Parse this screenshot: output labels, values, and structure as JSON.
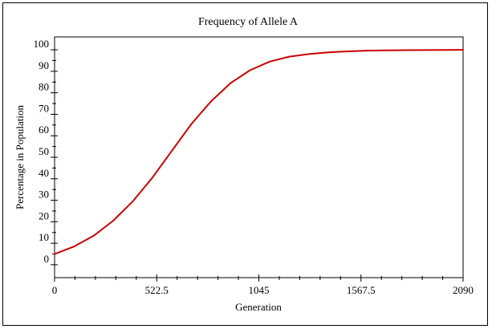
{
  "chart_data": {
    "type": "line",
    "title": "Frequency of Allele A",
    "xlabel": "Generation",
    "ylabel": "Percentage in Population",
    "xlim": [
      0,
      2090
    ],
    "ylim": [
      -6,
      106
    ],
    "x_ticks": [
      0,
      522.5,
      1045,
      1567.5,
      2090
    ],
    "x_tick_labels": [
      "0",
      "522.5",
      "1045",
      "1567.5",
      "2090"
    ],
    "y_ticks": [
      0,
      10,
      20,
      30,
      40,
      50,
      60,
      70,
      80,
      90,
      100
    ],
    "y_tick_labels": [
      "0",
      "10",
      "20",
      "30",
      "40",
      "50",
      "60",
      "70",
      "80",
      "90",
      "100"
    ],
    "grid": false,
    "legend": "none",
    "series": [
      {
        "color": "#cc0000",
        "x": [
          0,
          100,
          200,
          300,
          400,
          500,
          600,
          700,
          800,
          900,
          1000,
          1100,
          1200,
          1300,
          1400,
          1500,
          1600,
          1700,
          1800,
          1900,
          2000,
          2090
        ],
        "y": [
          5,
          8.5,
          13.5,
          20.5,
          29.5,
          40.5,
          53,
          65.5,
          76,
          84.5,
          90.5,
          94.5,
          96.8,
          98,
          98.8,
          99.3,
          99.6,
          99.75,
          99.85,
          99.9,
          99.95,
          100
        ]
      }
    ]
  }
}
